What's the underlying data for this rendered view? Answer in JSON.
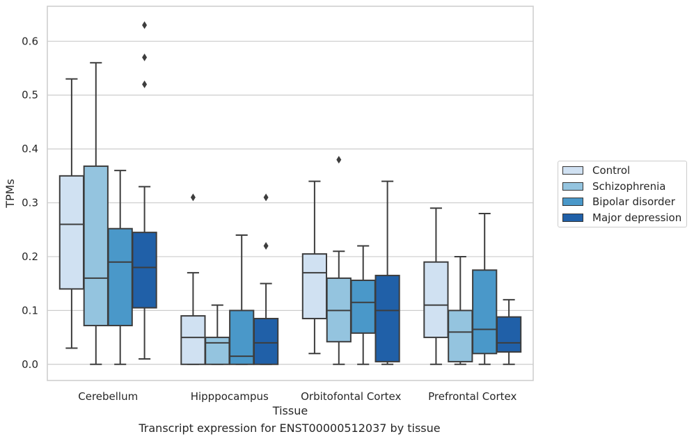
{
  "chart_data": {
    "type": "box",
    "xlabel": "Tissue",
    "ylabel": "TPMs",
    "categories": [
      "Cerebellum",
      "Hipppocampus",
      "Orbitofontal Cortex",
      "Prefrontal Cortex"
    ],
    "ylim": [
      -0.03,
      0.665
    ],
    "yticks": [
      0.0,
      0.1,
      0.2,
      0.3,
      0.4,
      0.5,
      0.6
    ],
    "ytick_labels": [
      "0.0",
      "0.1",
      "0.2",
      "0.3",
      "0.4",
      "0.5",
      "0.6"
    ],
    "grid": "horizontal",
    "legend_placement": "right-outside",
    "colors": [
      "#d0e1f2",
      "#94c4df",
      "#4a98c9",
      "#2060a8"
    ],
    "series": [
      {
        "name": "Control",
        "boxes": [
          {
            "min": 0.03,
            "q1": 0.14,
            "median": 0.26,
            "q3": 0.35,
            "max": 0.53,
            "outliers": []
          },
          {
            "min": 0.0,
            "q1": 0.0,
            "median": 0.05,
            "q3": 0.09,
            "max": 0.17,
            "outliers": [
              0.31
            ]
          },
          {
            "min": 0.02,
            "q1": 0.085,
            "median": 0.17,
            "q3": 0.205,
            "max": 0.34,
            "outliers": []
          },
          {
            "min": 0.0,
            "q1": 0.05,
            "median": 0.11,
            "q3": 0.19,
            "max": 0.29,
            "outliers": []
          }
        ]
      },
      {
        "name": "Schizophrenia",
        "boxes": [
          {
            "min": 0.0,
            "q1": 0.072,
            "median": 0.16,
            "q3": 0.368,
            "max": 0.56,
            "outliers": []
          },
          {
            "min": 0.0,
            "q1": 0.0,
            "median": 0.04,
            "q3": 0.05,
            "max": 0.11,
            "outliers": []
          },
          {
            "min": 0.0,
            "q1": 0.042,
            "median": 0.1,
            "q3": 0.16,
            "max": 0.21,
            "outliers": [
              0.38
            ]
          },
          {
            "min": 0.0,
            "q1": 0.005,
            "median": 0.06,
            "q3": 0.1,
            "max": 0.2,
            "outliers": []
          }
        ]
      },
      {
        "name": "Bipolar disorder",
        "boxes": [
          {
            "min": 0.0,
            "q1": 0.072,
            "median": 0.19,
            "q3": 0.252,
            "max": 0.36,
            "outliers": []
          },
          {
            "min": 0.0,
            "q1": 0.0,
            "median": 0.015,
            "q3": 0.1,
            "max": 0.24,
            "outliers": []
          },
          {
            "min": 0.0,
            "q1": 0.058,
            "median": 0.115,
            "q3": 0.156,
            "max": 0.22,
            "outliers": []
          },
          {
            "min": 0.0,
            "q1": 0.02,
            "median": 0.065,
            "q3": 0.175,
            "max": 0.28,
            "outliers": []
          }
        ]
      },
      {
        "name": "Major depression",
        "boxes": [
          {
            "min": 0.01,
            "q1": 0.105,
            "median": 0.18,
            "q3": 0.245,
            "max": 0.33,
            "outliers": [
              0.52,
              0.57,
              0.63
            ]
          },
          {
            "min": 0.0,
            "q1": 0.0,
            "median": 0.04,
            "q3": 0.085,
            "max": 0.15,
            "outliers": [
              0.22,
              0.31
            ]
          },
          {
            "min": 0.0,
            "q1": 0.005,
            "median": 0.1,
            "q3": 0.165,
            "max": 0.34,
            "outliers": []
          },
          {
            "min": 0.0,
            "q1": 0.023,
            "median": 0.04,
            "q3": 0.088,
            "max": 0.12,
            "outliers": []
          }
        ]
      }
    ]
  },
  "footer": "Transcript expression for ENST00000512037 by tissue"
}
